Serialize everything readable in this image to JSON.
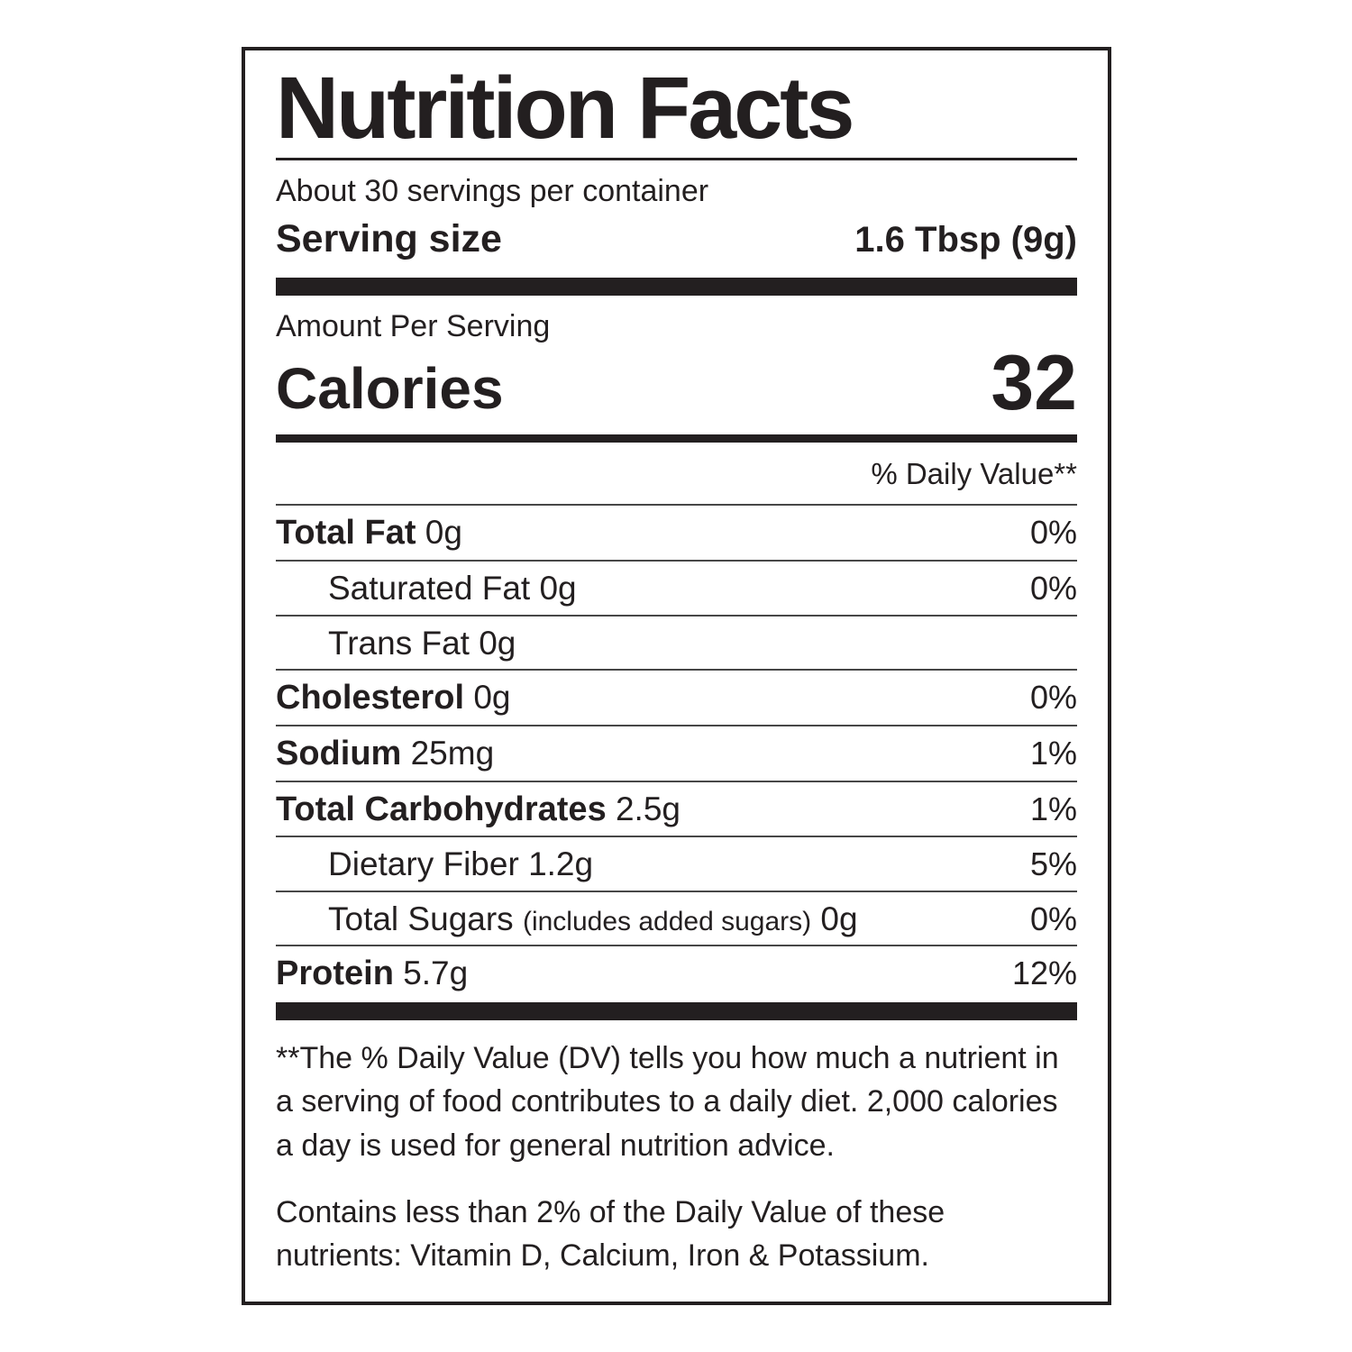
{
  "label": {
    "title": "Nutrition Facts",
    "servings_per_container": "About 30 servings per container",
    "serving_size_label": "Serving size",
    "serving_size_value": "1.6 Tbsp (9g)",
    "amount_per_serving": "Amount Per Serving",
    "calories_label": "Calories",
    "calories_value": "32",
    "daily_value_header": "% Daily Value**",
    "rows": [
      {
        "name": "Total Fat",
        "amount": "0g",
        "dv": "0%"
      },
      {
        "name": "Saturated Fat",
        "amount": "0g",
        "dv": "0%"
      },
      {
        "name": "Trans Fat",
        "amount": "0g",
        "dv": ""
      },
      {
        "name": "Cholesterol",
        "amount": "0g",
        "dv": "0%"
      },
      {
        "name": "Sodium",
        "amount": "25mg",
        "dv": "1%"
      },
      {
        "name": "Total Carbohydrates",
        "amount": "2.5g",
        "dv": "1%"
      },
      {
        "name": "Dietary Fiber",
        "amount": "1.2g",
        "dv": "5%"
      },
      {
        "name": "Total Sugars",
        "note": "(includes added sugars)",
        "amount": "0g",
        "dv": "0%"
      },
      {
        "name": "Protein",
        "amount": "5.7g",
        "dv": "12%"
      }
    ],
    "footnote": "**The % Daily Value (DV) tells you how much a nutrient in a serving of food contributes to a daily diet. 2,000 calories a day is used for general nutrition advice.",
    "contains_note": "Contains less than 2% of the Daily Value of these nutrients: Vitamin D, Calcium, Iron & Potassium."
  },
  "colors": {
    "ink": "#231f20",
    "divider": "#474747",
    "background": "#ffffff"
  }
}
